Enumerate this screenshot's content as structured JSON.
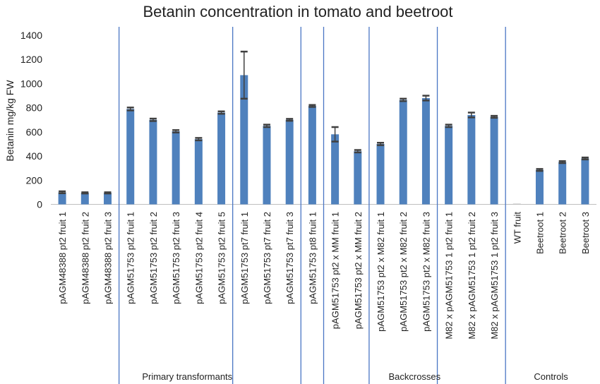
{
  "chart_data": {
    "type": "bar",
    "title": "Betanin concentration in tomato and beetroot",
    "ylabel": "Betanin mg/kg FW",
    "ylim": [
      0,
      1400
    ],
    "yticks": [
      "0",
      "200",
      "400",
      "600",
      "800",
      "1000",
      "1200",
      "1400"
    ],
    "grid": false,
    "categories": [
      "pAGM48388 pt2 fruit 1",
      "pAGM48388 pt2 fruit 2",
      "pAGM48388 pt2 fruit 3",
      "pAGM51753 pt2 fruit 1",
      "pAGM51753 pt2 fruit 2",
      "pAGM51753 pt2 fruit 3",
      "pAGM51753 pt2 fruit 4",
      "pAGM51753 pt2 fruit 5",
      "pAGM51753 pt7 fruit 1",
      "pAGM51753 pt7 fruit 2",
      "pAGM51753 pt7 fruit 3",
      "pAGM51753 pt8 fruit 1",
      "pAGM51753 pt2 x MM fruit 1",
      "pAGM51753 pt2 x MM fruit 2",
      "pAGM51753 pt2 x M82 fruit 1",
      "pAGM51753 pt2 x M82 fruit 2",
      "pAGM51753 pt2 x M82 fruit 3",
      "M82 x pAGM51753 1 pt2 fruit 1",
      "M82 x pAGM51753 1 pt2 fruit 2",
      "M82 x pAGM51753 1 pt2 fruit 3",
      "WT fruit",
      "Beetroot 1",
      "Beetroot 2",
      "Beetroot 3"
    ],
    "values": [
      100,
      95,
      95,
      790,
      700,
      605,
      540,
      760,
      1070,
      650,
      700,
      815,
      580,
      440,
      500,
      865,
      880,
      650,
      740,
      725,
      0,
      285,
      350,
      380
    ],
    "error": [
      8,
      5,
      5,
      12,
      10,
      10,
      10,
      10,
      195,
      10,
      8,
      8,
      60,
      10,
      10,
      10,
      20,
      10,
      20,
      8,
      0,
      8,
      8,
      8
    ],
    "groups": [
      {
        "label": "Primary transformants",
        "start": 0,
        "end": 11
      },
      {
        "label": "Backcrosses",
        "start": 12,
        "end": 19
      },
      {
        "label": "Controls",
        "start": 20,
        "end": 23
      }
    ],
    "dividers_after": [
      2,
      7,
      10,
      11,
      13,
      16,
      19
    ],
    "bar_color": "#4f81bd",
    "error_color": "#404040",
    "divider_color": "#4a76c4"
  }
}
